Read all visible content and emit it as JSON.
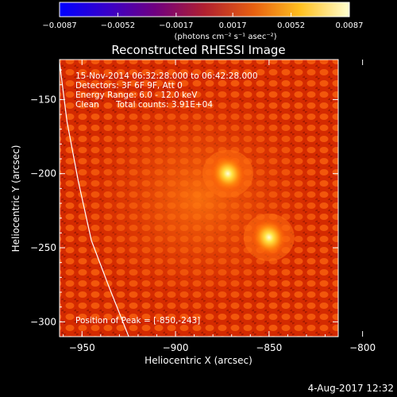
{
  "chart_data": {
    "type": "heatmap",
    "title": "Reconstructed RHESSI Image",
    "xlabel": "Heliocentric X (arcsec)",
    "ylabel": "Heliocentric Y (arcsec)",
    "xlim": [
      -962,
      -813
    ],
    "ylim": [
      -310,
      -123
    ],
    "xticks": [
      -950,
      -900,
      -850,
      -800
    ],
    "xtick_labels": [
      "−950",
      "−900",
      "−850",
      "−800"
    ],
    "yticks": [
      -150,
      -200,
      -250,
      -300
    ],
    "ytick_labels": [
      "−150",
      "−200",
      "−250",
      "−300"
    ],
    "colorbar": {
      "range": [
        -0.0087,
        0.0087
      ],
      "ticks": [
        -0.0087,
        -0.0052,
        -0.0017,
        0.0017,
        0.0052,
        0.0087
      ],
      "tick_labels": [
        "−0.0087",
        "−0.0052",
        "−0.0017",
        "0.0017",
        "0.0052",
        "0.0087"
      ],
      "unit_label": "(photons cm⁻² s⁻¹ asec⁻²)",
      "colormap": [
        "#0000ff",
        "#3a00c8",
        "#700080",
        "#b02030",
        "#e86010",
        "#ffc020",
        "#ffffd0"
      ]
    },
    "sources": [
      {
        "x": -872,
        "y": -200,
        "peak": 0.0087
      },
      {
        "x": -850,
        "y": -243,
        "peak": 0.0087
      }
    ],
    "limb_curve": [
      [
        -962,
        -125
      ],
      [
        -958,
        -165
      ],
      [
        -952,
        -205
      ],
      [
        -945,
        -245
      ],
      [
        -936,
        -275
      ],
      [
        -925,
        -310
      ]
    ],
    "grid": false
  },
  "annotations": {
    "time_range": "15-Nov-2014 06:32:28.000 to 06:42:28.000",
    "detectors": "Detectors: 3F 6F 9F, Att 0",
    "energy_range": "Energy Range: 6.0 - 12.0 keV",
    "clean_label": "Clean",
    "total_counts": "Total counts: 3.91E+04",
    "peak_position": "Position of Peak = [-850,-243]"
  },
  "footer": {
    "timestamp": "4-Aug-2017 12:32"
  }
}
